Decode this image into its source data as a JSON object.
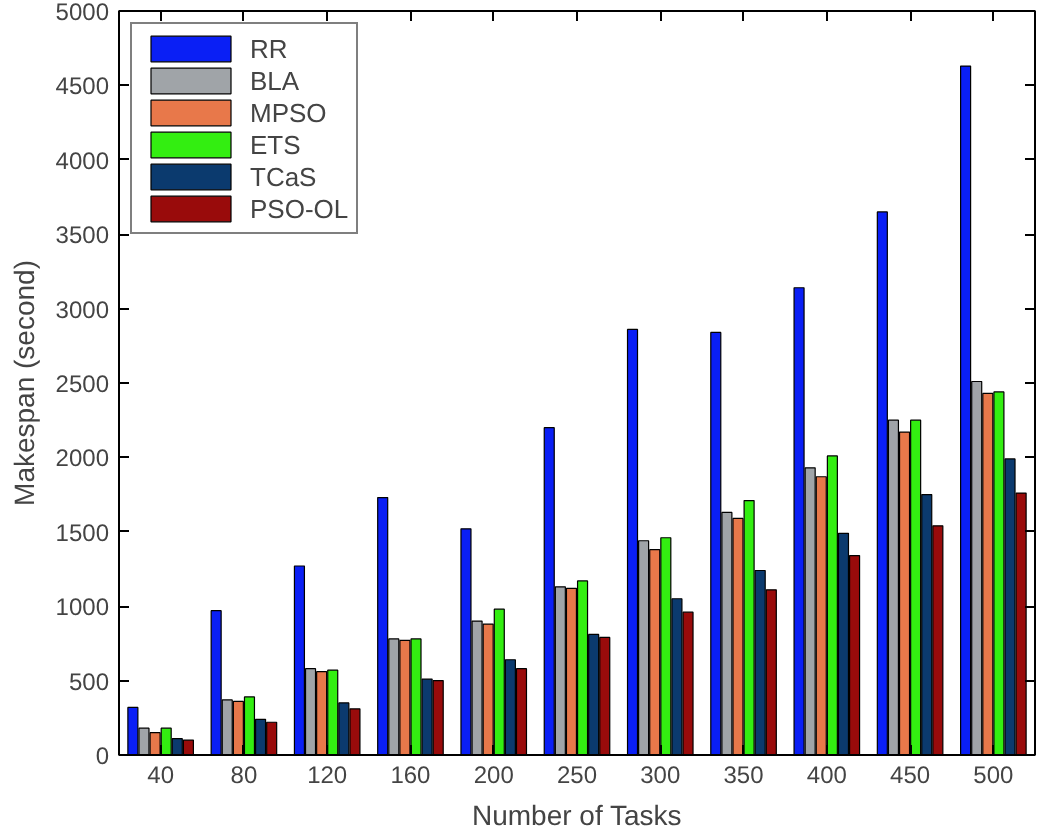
{
  "chart_data": {
    "type": "bar",
    "xlabel": "Number of Tasks",
    "ylabel": "Makespan (second)",
    "categories": [
      "40",
      "80",
      "120",
      "160",
      "200",
      "250",
      "300",
      "350",
      "400",
      "450",
      "500"
    ],
    "ylim": [
      0,
      5000
    ],
    "yticks": [
      0,
      500,
      1000,
      1500,
      2000,
      2500,
      3000,
      3500,
      4000,
      4500,
      5000
    ],
    "grid": false,
    "legend": "top left",
    "series": [
      {
        "name": "RR",
        "color": "#0a1ff5",
        "values": [
          320,
          970,
          1270,
          1730,
          1520,
          2200,
          2860,
          2840,
          3140,
          3650,
          4630
        ]
      },
      {
        "name": "BLA",
        "color": "#a0a4a8",
        "values": [
          180,
          370,
          580,
          780,
          900,
          1130,
          1440,
          1630,
          1930,
          2250,
          2510
        ]
      },
      {
        "name": "MPSO",
        "color": "#e8784a",
        "values": [
          150,
          360,
          560,
          770,
          880,
          1120,
          1380,
          1590,
          1870,
          2170,
          2430
        ]
      },
      {
        "name": "ETS",
        "color": "#33ee11",
        "values": [
          180,
          390,
          570,
          780,
          980,
          1170,
          1460,
          1710,
          2010,
          2250,
          2440
        ]
      },
      {
        "name": "TCaS",
        "color": "#0b3a6e",
        "values": [
          110,
          240,
          350,
          510,
          640,
          810,
          1050,
          1240,
          1490,
          1750,
          1990
        ]
      },
      {
        "name": "PSO-OL",
        "color": "#990b0b",
        "values": [
          100,
          220,
          310,
          500,
          580,
          790,
          960,
          1110,
          1340,
          1540,
          1760
        ]
      }
    ]
  }
}
